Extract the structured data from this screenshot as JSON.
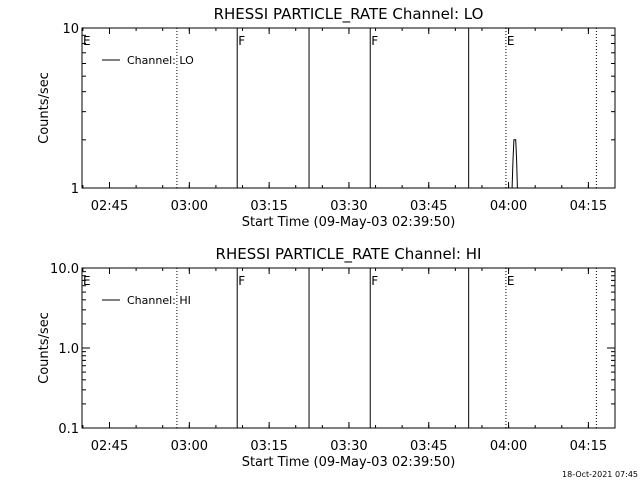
{
  "footer": {
    "timestamp": "18-Oct-2021 07:45"
  },
  "chart_data": [
    {
      "type": "line",
      "title": "RHESSI PARTICLE_RATE Channel: LO",
      "xlabel": "Start Time (09-May-03 02:39:50)",
      "ylabel": "Counts/sec",
      "yscale": "log",
      "ylim": [
        1,
        10
      ],
      "ytick_labels": [
        "1",
        "10"
      ],
      "xlim": [
        "02:39:50",
        "04:20:00"
      ],
      "xtick_labels": [
        "02:45",
        "03:00",
        "03:15",
        "03:30",
        "03:45",
        "04:00",
        "04:15"
      ],
      "legend": {
        "entries": [
          "Channel: LO"
        ],
        "placement": "top-left"
      },
      "grid": false,
      "flags": [
        {
          "label": "E",
          "time": "02:39:50"
        },
        {
          "label": "F",
          "time": "03:09:00"
        },
        {
          "label": "F",
          "time": "03:34:00"
        },
        {
          "label": "E",
          "time": "03:59:30"
        }
      ],
      "vlines": [
        {
          "time": "02:57:40",
          "style": "dotted"
        },
        {
          "time": "03:09:00",
          "style": "solid"
        },
        {
          "time": "03:22:30",
          "style": "solid"
        },
        {
          "time": "03:34:00",
          "style": "solid"
        },
        {
          "time": "03:52:30",
          "style": "solid"
        },
        {
          "time": "03:59:30",
          "style": "dotted"
        },
        {
          "time": "04:16:30",
          "style": "dotted"
        }
      ],
      "series": [
        {
          "name": "Channel: LO",
          "points": [
            [
              "04:00:40",
              1.0
            ],
            [
              "04:00:50",
              1.5
            ],
            [
              "04:01:00",
              2.0
            ],
            [
              "04:01:20",
              2.0
            ],
            [
              "04:01:30",
              1.5
            ],
            [
              "04:01:40",
              1.0
            ]
          ]
        }
      ]
    },
    {
      "type": "line",
      "title": "RHESSI PARTICLE_RATE Channel: HI",
      "xlabel": "Start Time (09-May-03 02:39:50)",
      "ylabel": "Counts/sec",
      "yscale": "log",
      "ylim": [
        0.1,
        10
      ],
      "ytick_labels": [
        "0.1",
        "1.0",
        "10.0"
      ],
      "xlim": [
        "02:39:50",
        "04:20:00"
      ],
      "xtick_labels": [
        "02:45",
        "03:00",
        "03:15",
        "03:30",
        "03:45",
        "04:00",
        "04:15"
      ],
      "legend": {
        "entries": [
          "Channel: HI"
        ],
        "placement": "top-left"
      },
      "grid": false,
      "flags": [
        {
          "label": "E",
          "time": "02:39:50"
        },
        {
          "label": "F",
          "time": "03:09:00"
        },
        {
          "label": "F",
          "time": "03:34:00"
        },
        {
          "label": "E",
          "time": "03:59:30"
        }
      ],
      "vlines": [
        {
          "time": "02:57:40",
          "style": "dotted"
        },
        {
          "time": "03:09:00",
          "style": "solid"
        },
        {
          "time": "03:22:30",
          "style": "solid"
        },
        {
          "time": "03:34:00",
          "style": "solid"
        },
        {
          "time": "03:52:30",
          "style": "solid"
        },
        {
          "time": "03:59:30",
          "style": "dotted"
        },
        {
          "time": "04:16:30",
          "style": "dotted"
        }
      ],
      "series": [
        {
          "name": "Channel: HI",
          "points": []
        }
      ]
    }
  ]
}
